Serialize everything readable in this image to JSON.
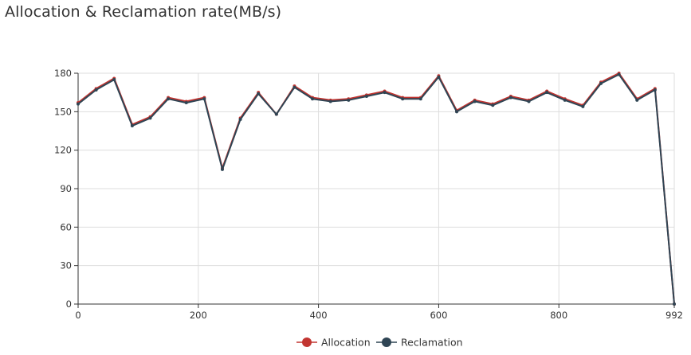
{
  "chart_data": {
    "title": "Allocation & Reclamation rate(MB/s)",
    "type": "line",
    "xlim": [
      0,
      992
    ],
    "ylim": [
      0,
      180
    ],
    "x_ticks": [
      0,
      200,
      400,
      600,
      800,
      992
    ],
    "y_ticks": [
      0,
      30,
      60,
      90,
      120,
      150,
      180
    ],
    "grid": true,
    "legend_position": "bottom-center",
    "x": [
      0,
      30,
      60,
      90,
      120,
      150,
      180,
      210,
      240,
      270,
      300,
      330,
      360,
      390,
      420,
      450,
      480,
      510,
      540,
      570,
      600,
      630,
      660,
      690,
      720,
      750,
      780,
      810,
      840,
      870,
      900,
      930,
      960,
      992
    ],
    "series": [
      {
        "name": "Allocation",
        "color": "#c23531",
        "values": [
          157,
          168,
          176,
          140,
          146,
          161,
          158,
          161,
          106,
          145,
          165,
          148,
          170,
          161,
          159,
          160,
          163,
          166,
          161,
          161,
          178,
          151,
          159,
          156,
          162,
          159,
          166,
          160,
          155,
          173,
          180,
          160,
          168,
          0
        ]
      },
      {
        "name": "Reclamation",
        "color": "#2f4554",
        "values": [
          156,
          167,
          175,
          139,
          145,
          160,
          157,
          160,
          105,
          144,
          164,
          148,
          169,
          160,
          158,
          159,
          162,
          165,
          160,
          160,
          177,
          150,
          158,
          155,
          161,
          158,
          165,
          159,
          154,
          172,
          179,
          159,
          167,
          0
        ]
      }
    ]
  }
}
